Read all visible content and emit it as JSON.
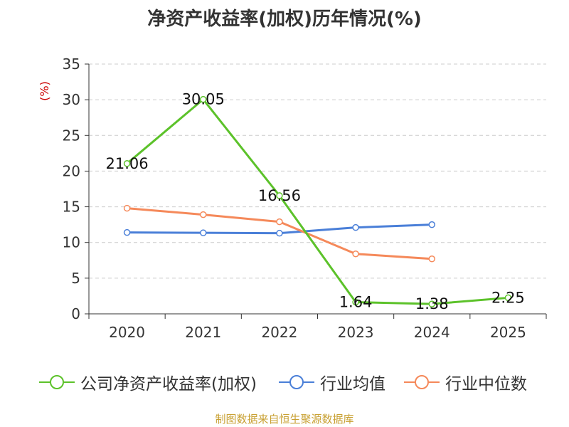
{
  "chart_data": {
    "type": "line",
    "title": "净资产收益率(加权)历年情况(%)",
    "ylabel": "(%)",
    "xlabel": "",
    "categories": [
      "2020",
      "2021",
      "2022",
      "2023",
      "2024",
      "2025"
    ],
    "ylim": [
      0,
      35
    ],
    "yticks": [
      0,
      5,
      10,
      15,
      20,
      25,
      30,
      35
    ],
    "grid": "horizontal-dashed",
    "legend_position": "bottom",
    "series": [
      {
        "name": "公司净资产收益率(加权)",
        "color": "#5cc22a",
        "values": [
          21.06,
          30.05,
          16.56,
          1.64,
          1.38,
          2.25
        ],
        "labels": [
          "21.06",
          "30.05",
          "16.56",
          "1.64",
          "1.38",
          "2.25"
        ]
      },
      {
        "name": "行业均值",
        "color": "#4a7fd8",
        "values": [
          11.4,
          11.35,
          11.3,
          12.1,
          12.5,
          null
        ]
      },
      {
        "name": "行业中位数",
        "color": "#f5895a",
        "values": [
          14.8,
          13.9,
          12.9,
          8.4,
          7.7,
          null
        ]
      }
    ]
  },
  "source_note": "制图数据来自恒生聚源数据库",
  "colors": {
    "axis": "#333333",
    "grid": "#cccccc",
    "ylabel": "#cc0000",
    "source": "#c8a032"
  }
}
